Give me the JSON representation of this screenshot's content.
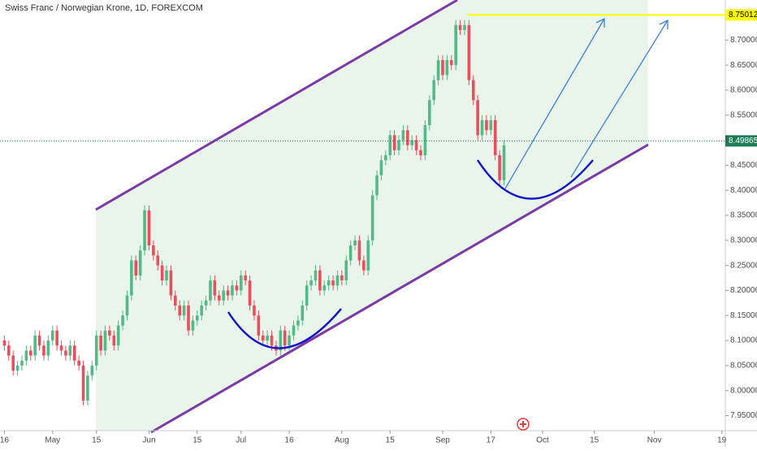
{
  "chart_data": {
    "type": "candlestick",
    "title": "Swiss Franc / Norwegian Krone, 1D, FOREXCOM",
    "open": [
      8.1,
      8.09,
      8.07,
      8.04,
      8.05,
      8.06,
      8.08,
      8.07,
      8.11,
      8.09,
      8.07,
      8.1,
      8.12,
      8.09,
      8.08,
      8.07,
      8.09,
      8.06,
      8.05,
      7.98,
      8.03,
      8.05,
      8.11,
      8.08,
      8.12,
      8.11,
      8.09,
      8.13,
      8.15,
      8.19,
      8.26,
      8.23,
      8.28,
      8.36,
      8.29,
      8.27,
      8.25,
      8.22,
      8.24,
      8.19,
      8.17,
      8.15,
      8.17,
      8.12,
      8.14,
      8.15,
      8.17,
      8.18,
      8.22,
      8.19,
      8.18,
      8.2,
      8.19,
      8.21,
      8.2,
      8.23,
      8.22,
      8.17,
      8.15,
      8.11,
      8.1,
      8.11,
      8.09,
      8.08,
      8.12,
      8.09,
      8.11,
      8.13,
      8.14,
      8.17,
      8.21,
      8.22,
      8.24,
      8.2,
      8.21,
      8.22,
      8.21,
      8.23,
      8.22,
      8.26,
      8.29,
      8.3,
      8.26,
      8.24,
      8.3,
      8.39,
      8.43,
      8.46,
      8.47,
      8.51,
      8.48,
      8.5,
      8.52,
      8.49,
      8.5,
      8.48,
      8.47,
      8.53,
      8.58,
      8.62,
      8.66,
      8.63,
      8.66,
      8.65,
      8.73,
      8.72,
      8.73,
      8.62,
      8.58,
      8.51,
      8.54,
      8.52,
      8.54,
      8.47,
      8.42
    ],
    "high": [
      8.11,
      8.1,
      8.08,
      8.06,
      8.07,
      8.09,
      8.09,
      8.12,
      8.12,
      8.1,
      8.11,
      8.13,
      8.13,
      8.1,
      8.09,
      8.1,
      8.1,
      8.07,
      8.06,
      8.04,
      8.06,
      8.12,
      8.12,
      8.13,
      8.13,
      8.12,
      8.14,
      8.16,
      8.2,
      8.27,
      8.27,
      8.29,
      8.37,
      8.37,
      8.3,
      8.28,
      8.26,
      8.25,
      8.25,
      8.2,
      8.18,
      8.18,
      8.18,
      8.15,
      8.16,
      8.18,
      8.19,
      8.23,
      8.23,
      8.2,
      8.21,
      8.21,
      8.22,
      8.22,
      8.24,
      8.24,
      8.23,
      8.18,
      8.16,
      8.12,
      8.12,
      8.12,
      8.1,
      8.13,
      8.13,
      8.12,
      8.14,
      8.15,
      8.18,
      8.22,
      8.23,
      8.25,
      8.25,
      8.22,
      8.23,
      8.23,
      8.24,
      8.24,
      8.27,
      8.3,
      8.31,
      8.31,
      8.27,
      8.31,
      8.4,
      8.44,
      8.47,
      8.48,
      8.52,
      8.52,
      8.51,
      8.53,
      8.53,
      8.51,
      8.51,
      8.49,
      8.54,
      8.59,
      8.63,
      8.67,
      8.67,
      8.67,
      8.67,
      8.74,
      8.74,
      8.74,
      8.74,
      8.63,
      8.59,
      8.55,
      8.55,
      8.55,
      8.55,
      8.48,
      8.5
    ],
    "low": [
      8.08,
      8.06,
      8.03,
      8.03,
      8.04,
      8.05,
      8.06,
      8.06,
      8.08,
      8.06,
      8.06,
      8.09,
      8.08,
      8.07,
      8.06,
      8.06,
      8.05,
      8.04,
      7.97,
      7.97,
      8.02,
      8.04,
      8.07,
      8.07,
      8.1,
      8.08,
      8.08,
      8.12,
      8.14,
      8.18,
      8.22,
      8.22,
      8.27,
      8.28,
      8.26,
      8.24,
      8.21,
      8.21,
      8.18,
      8.16,
      8.14,
      8.14,
      8.11,
      8.11,
      8.13,
      8.14,
      8.16,
      8.17,
      8.18,
      8.17,
      8.17,
      8.18,
      8.18,
      8.19,
      8.19,
      8.21,
      8.16,
      8.14,
      8.1,
      8.09,
      8.09,
      8.08,
      8.07,
      8.07,
      8.08,
      8.08,
      8.1,
      8.12,
      8.13,
      8.16,
      8.2,
      8.21,
      8.19,
      8.19,
      8.2,
      8.2,
      8.2,
      8.21,
      8.21,
      8.25,
      8.28,
      8.25,
      8.23,
      8.23,
      8.29,
      8.38,
      8.42,
      8.45,
      8.46,
      8.47,
      8.47,
      8.49,
      8.48,
      8.48,
      8.47,
      8.46,
      8.46,
      8.52,
      8.57,
      8.61,
      8.62,
      8.62,
      8.64,
      8.64,
      8.71,
      8.71,
      8.61,
      8.57,
      8.5,
      8.5,
      8.51,
      8.51,
      8.46,
      8.41,
      8.41
    ],
    "close": [
      8.09,
      8.07,
      8.04,
      8.05,
      8.06,
      8.08,
      8.07,
      8.11,
      8.09,
      8.07,
      8.1,
      8.12,
      8.09,
      8.08,
      8.07,
      8.09,
      8.06,
      8.05,
      7.98,
      8.03,
      8.05,
      8.11,
      8.08,
      8.12,
      8.11,
      8.09,
      8.13,
      8.15,
      8.19,
      8.26,
      8.23,
      8.28,
      8.36,
      8.29,
      8.27,
      8.25,
      8.22,
      8.24,
      8.19,
      8.17,
      8.15,
      8.17,
      8.12,
      8.14,
      8.15,
      8.17,
      8.18,
      8.22,
      8.19,
      8.18,
      8.2,
      8.19,
      8.21,
      8.2,
      8.23,
      8.22,
      8.17,
      8.15,
      8.11,
      8.1,
      8.11,
      8.09,
      8.08,
      8.12,
      8.09,
      8.11,
      8.13,
      8.14,
      8.17,
      8.21,
      8.22,
      8.24,
      8.2,
      8.21,
      8.22,
      8.21,
      8.23,
      8.22,
      8.26,
      8.29,
      8.3,
      8.26,
      8.24,
      8.3,
      8.39,
      8.43,
      8.46,
      8.47,
      8.51,
      8.48,
      8.5,
      8.52,
      8.49,
      8.5,
      8.48,
      8.47,
      8.53,
      8.58,
      8.62,
      8.66,
      8.63,
      8.66,
      8.65,
      8.73,
      8.72,
      8.73,
      8.62,
      8.58,
      8.51,
      8.54,
      8.52,
      8.54,
      8.47,
      8.42,
      8.49
    ],
    "up_color": "#53b987",
    "down_color": "#eb4d5c",
    "xlim": [
      -1,
      164.5
    ],
    "xticks": [
      {
        "value": 0,
        "label": "16"
      },
      {
        "value": 11,
        "label": "May"
      },
      {
        "value": 21,
        "label": "15"
      },
      {
        "value": 33,
        "label": "Jun"
      },
      {
        "value": 44,
        "label": "15"
      },
      {
        "value": 54,
        "label": "Jul"
      },
      {
        "value": 65,
        "label": "16"
      },
      {
        "value": 77,
        "label": "Aug"
      },
      {
        "value": 88,
        "label": "15"
      },
      {
        "value": 100,
        "label": "Sep"
      },
      {
        "value": 111,
        "label": "17"
      },
      {
        "value": 122.8,
        "label": "Oct"
      },
      {
        "value": 134.6,
        "label": "15"
      },
      {
        "value": 148.3,
        "label": "Nov"
      },
      {
        "value": 163.7,
        "label": "19"
      }
    ],
    "ylim": [
      7.92,
      8.78
    ],
    "yticks": [
      {
        "value": 7.95,
        "label": "7.95000"
      },
      {
        "value": 8.0,
        "label": "8.00000"
      },
      {
        "value": 8.05,
        "label": "8.05000"
      },
      {
        "value": 8.1,
        "label": "8.10000"
      },
      {
        "value": 8.15,
        "label": "8.15000"
      },
      {
        "value": 8.2,
        "label": "8.20000"
      },
      {
        "value": 8.25,
        "label": "8.25000"
      },
      {
        "value": 8.3,
        "label": "8.30000"
      },
      {
        "value": 8.35,
        "label": "8.35000"
      },
      {
        "value": 8.4,
        "label": "8.40000"
      },
      {
        "value": 8.45,
        "label": "8.45000"
      },
      {
        "value": 8.5,
        "label": "8.50000"
      },
      {
        "value": 8.55,
        "label": "8.55000"
      },
      {
        "value": 8.6,
        "label": "8.60000"
      },
      {
        "value": 8.65,
        "label": "8.65000"
      },
      {
        "value": 8.7,
        "label": "8.70000"
      },
      {
        "value": 8.75,
        "label": "8.75000"
      }
    ],
    "last_price": 8.49865,
    "last_price_color": "#1e7b57",
    "level": 8.75012,
    "level_color": "#ffff00"
  }
}
